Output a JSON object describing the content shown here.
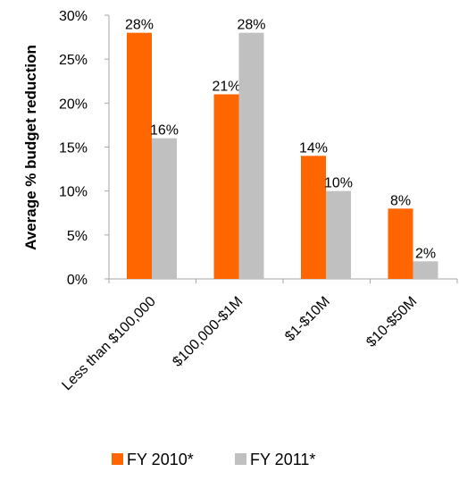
{
  "chart_data": {
    "type": "bar",
    "title": "",
    "xlabel": "",
    "ylabel": "Average % budget reduction",
    "ylim": [
      0,
      30
    ],
    "yticks": [
      "0%",
      "5%",
      "10%",
      "15%",
      "20%",
      "25%",
      "30%"
    ],
    "grid": false,
    "legend_position": "bottom",
    "categories": [
      "Less than $100,000",
      "$100,000-$1M",
      "$1-$10M",
      "$10-$50M"
    ],
    "series": [
      {
        "name": "FY 2010*",
        "color": "#ff6600",
        "values": [
          28,
          21,
          14,
          8
        ],
        "labels": [
          "28%",
          "21%",
          "14%",
          "8%"
        ]
      },
      {
        "name": "FY 2011*",
        "color": "#c0c0c0",
        "values": [
          16,
          28,
          10,
          2
        ],
        "labels": [
          "16%",
          "28%",
          "10%",
          "2%"
        ]
      }
    ]
  }
}
